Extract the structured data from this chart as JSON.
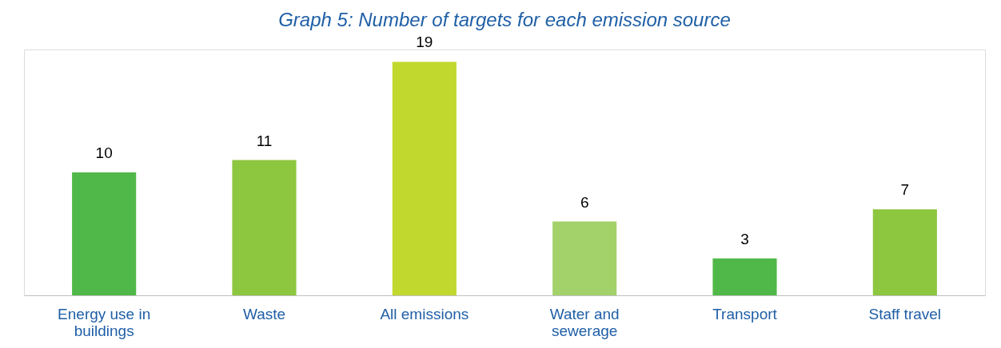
{
  "chart_data": {
    "type": "bar",
    "title": "Graph 5: Number of targets for each emission source",
    "categories": [
      "Energy use in\nbuildings",
      "Waste",
      "All emissions",
      "Water and\nsewerage",
      "Transport",
      "Staff travel"
    ],
    "values": [
      10,
      11,
      19,
      6,
      3,
      7
    ],
    "colors": [
      "#50b848",
      "#8dc63f",
      "#c1d82f",
      "#a3d16a",
      "#50b848",
      "#8dc63f"
    ],
    "data_labels": true
  }
}
